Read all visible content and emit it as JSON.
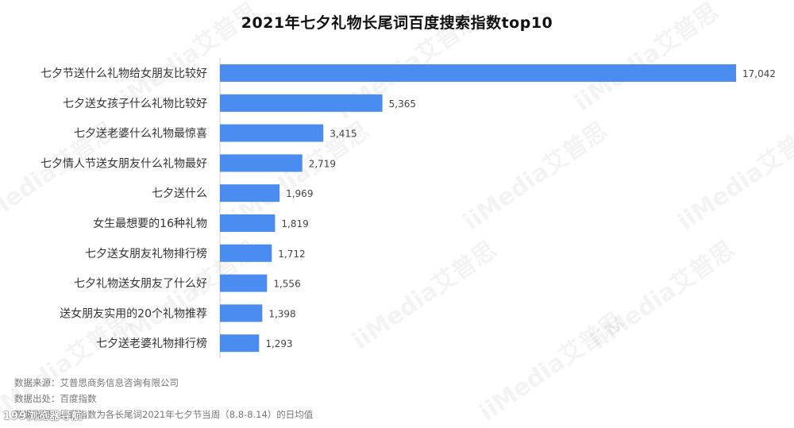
{
  "title": "2021年七夕礼物长尾词百度搜索指数top10",
  "watermark_text": "iiMedia艾普思",
  "corner_mark": "199浏览器导航",
  "notes": {
    "source": "数据来源：艾普思商务信息咨询有限公司",
    "origin": "数据出处：百度指数",
    "explain": "数据说明：搜索指数为各长尾词2021年七夕节当周（8.8-8.14）的日均值"
  },
  "colors": {
    "bar": "#4a8cf0"
  },
  "chart_data": {
    "type": "bar",
    "orientation": "horizontal",
    "title": "2021年七夕礼物长尾词百度搜索指数top10",
    "categories": [
      "七夕节送什么礼物给女朋友比较好",
      "七夕送女孩子什么礼物比较好",
      "七夕送老婆什么礼物最惊喜",
      "七夕情人节送女朋友什么礼物最好",
      "七夕送什么",
      "女生最想要的16种礼物",
      "七夕送女朋友礼物排行榜",
      "七夕礼物送女朋友了什么好",
      "送女朋友实用的20个礼物推荐",
      "七夕送老婆礼物排行榜"
    ],
    "values": [
      17042,
      5365,
      3415,
      2719,
      1969,
      1819,
      1712,
      1556,
      1398,
      1293
    ],
    "value_labels": [
      "17,042",
      "5,365",
      "3,415",
      "2,719",
      "1,969",
      "1,819",
      "1,712",
      "1,556",
      "1,398",
      "1,293"
    ],
    "xlim": [
      0,
      17042
    ],
    "grid": false,
    "legend": "none"
  }
}
